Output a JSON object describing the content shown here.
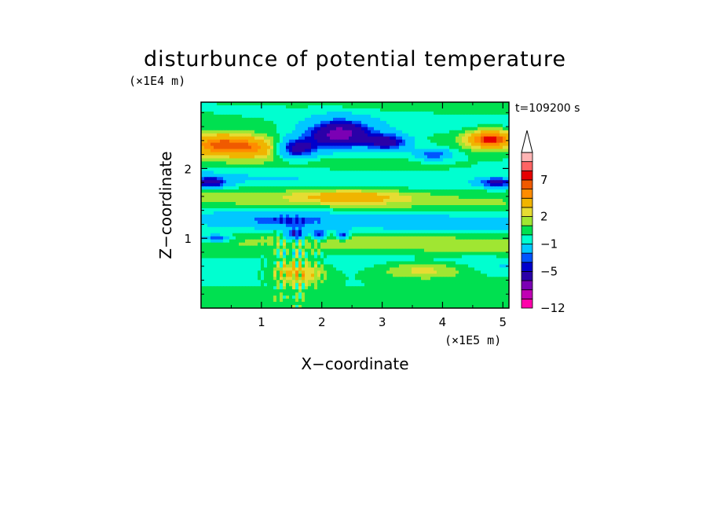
{
  "chart_data": {
    "type": "heatmap",
    "title": "disturbunce of potential temperature",
    "time_label": "t=109200 s",
    "xlabel": "X−coordinate",
    "ylabel": "Z−coordinate",
    "x_units": "(×1E5 m)",
    "y_units": "(×1E4 m)",
    "xlim": [
      0,
      5.1
    ],
    "ylim": [
      0,
      2.95
    ],
    "x_ticks": [
      1,
      2,
      3,
      4,
      5
    ],
    "x_tick_labels": [
      "1",
      "2",
      "3",
      "4",
      "5"
    ],
    "y_ticks": [
      1,
      2
    ],
    "y_tick_labels": [
      "1",
      "2"
    ],
    "colorbar": {
      "ticks": [
        "7",
        "2",
        "−1",
        "−5",
        "−12"
      ],
      "levels": [
        -12,
        -10,
        -8,
        -7,
        -5,
        -4,
        -3,
        -1,
        0,
        1,
        2,
        3,
        5,
        6,
        7,
        9,
        10
      ],
      "colors": [
        "#ff00aa",
        "#c000b4",
        "#7b00b4",
        "#2a00a8",
        "#0000cc",
        "#0055ff",
        "#00c8ff",
        "#00ffd0",
        "#00e050",
        "#a0e632",
        "#e6dc32",
        "#f0b400",
        "#ff8c00",
        "#f05a00",
        "#e60000",
        "#ff6464",
        "#ffb4b4"
      ]
    },
    "colorbar_extend": "max",
    "grid": false,
    "features": [
      {
        "x": 1.55,
        "z": 2.28,
        "amp": -6.5,
        "sx": 0.35,
        "sz": 0.14
      },
      {
        "x": 2.3,
        "z": 2.5,
        "amp": -8.0,
        "sx": 0.55,
        "sz": 0.2
      },
      {
        "x": 3.1,
        "z": 2.38,
        "amp": -5.5,
        "sx": 0.35,
        "sz": 0.12
      },
      {
        "x": 3.85,
        "z": 2.2,
        "amp": -4.0,
        "sx": 0.3,
        "sz": 0.08
      },
      {
        "x": 0.3,
        "z": 2.35,
        "amp": 6.5,
        "sx": 0.6,
        "sz": 0.16
      },
      {
        "x": 1.0,
        "z": 2.3,
        "amp": 4.0,
        "sx": 0.5,
        "sz": 0.15
      },
      {
        "x": 4.8,
        "z": 2.42,
        "amp": 7.5,
        "sx": 0.4,
        "sz": 0.13
      },
      {
        "x": 0.15,
        "z": 1.8,
        "amp": -5.5,
        "sx": 0.3,
        "sz": 0.08
      },
      {
        "x": 4.9,
        "z": 1.8,
        "amp": -5.5,
        "sx": 0.3,
        "sz": 0.07
      },
      {
        "x": 2.5,
        "z": 1.6,
        "amp": 3.0,
        "sx": 0.9,
        "sz": 0.1
      },
      {
        "x": 1.4,
        "z": 1.25,
        "amp": -2.5,
        "sx": 0.7,
        "sz": 0.1
      },
      {
        "x": 1.55,
        "z": 1.05,
        "amp": -5.5,
        "sx": 0.16,
        "sz": 0.09
      },
      {
        "x": 1.95,
        "z": 1.05,
        "amp": -5.0,
        "sx": 0.12,
        "sz": 0.07
      },
      {
        "x": 2.35,
        "z": 1.05,
        "amp": -5.0,
        "sx": 0.1,
        "sz": 0.06
      },
      {
        "x": 0.25,
        "z": 1.0,
        "amp": -4.5,
        "sx": 0.25,
        "sz": 0.05
      },
      {
        "x": 1.6,
        "z": 0.5,
        "amp": 4.0,
        "sx": 0.45,
        "sz": 0.18
      },
      {
        "x": 3.7,
        "z": 0.55,
        "amp": 3.0,
        "sx": 0.8,
        "sz": 0.12
      }
    ]
  }
}
